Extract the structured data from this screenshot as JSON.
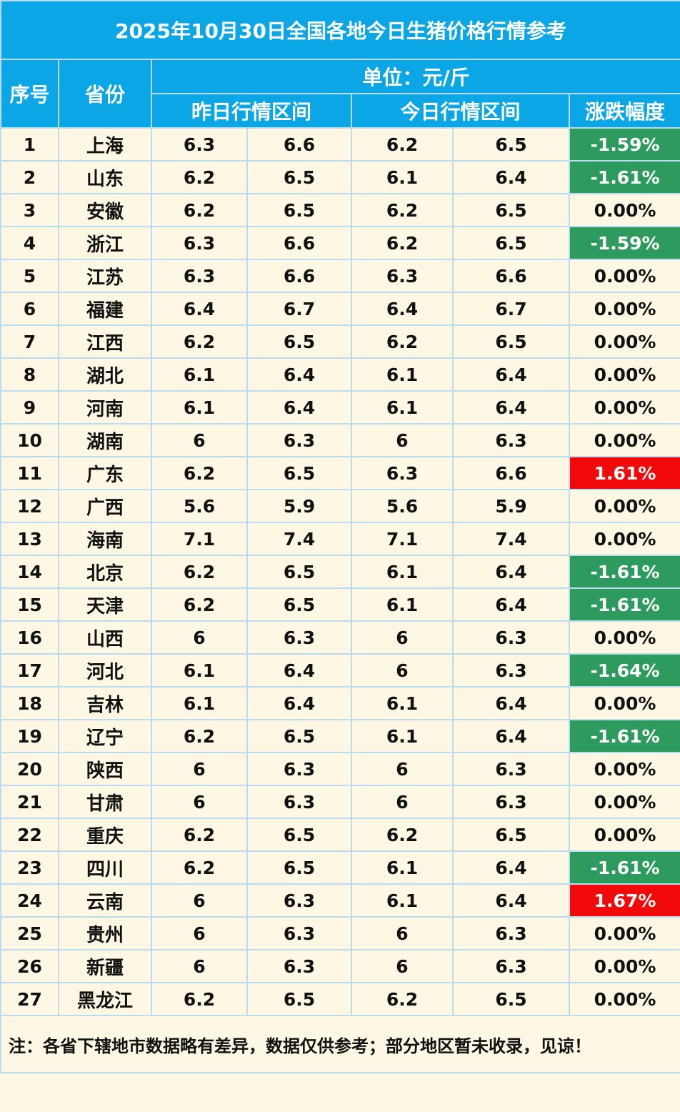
{
  "title": "2025年10月30日全国各地今日生猪价格行情参考",
  "headers": {
    "index": "序号",
    "province": "省份",
    "unit": "单位：元/斤",
    "yesterday": "昨日行情区间",
    "today": "今日行情区间",
    "change": "涨跌幅度"
  },
  "rows": [
    {
      "no": "1",
      "province": "上海",
      "y_low": "6.3",
      "y_high": "6.6",
      "t_low": "6.2",
      "t_high": "6.5",
      "change": "-1.59%",
      "trend": "down"
    },
    {
      "no": "2",
      "province": "山东",
      "y_low": "6.2",
      "y_high": "6.5",
      "t_low": "6.1",
      "t_high": "6.4",
      "change": "-1.61%",
      "trend": "down"
    },
    {
      "no": "3",
      "province": "安徽",
      "y_low": "6.2",
      "y_high": "6.5",
      "t_low": "6.2",
      "t_high": "6.5",
      "change": "0.00%",
      "trend": "flat"
    },
    {
      "no": "4",
      "province": "浙江",
      "y_low": "6.3",
      "y_high": "6.6",
      "t_low": "6.2",
      "t_high": "6.5",
      "change": "-1.59%",
      "trend": "down"
    },
    {
      "no": "5",
      "province": "江苏",
      "y_low": "6.3",
      "y_high": "6.6",
      "t_low": "6.3",
      "t_high": "6.6",
      "change": "0.00%",
      "trend": "flat"
    },
    {
      "no": "6",
      "province": "福建",
      "y_low": "6.4",
      "y_high": "6.7",
      "t_low": "6.4",
      "t_high": "6.7",
      "change": "0.00%",
      "trend": "flat"
    },
    {
      "no": "7",
      "province": "江西",
      "y_low": "6.2",
      "y_high": "6.5",
      "t_low": "6.2",
      "t_high": "6.5",
      "change": "0.00%",
      "trend": "flat"
    },
    {
      "no": "8",
      "province": "湖北",
      "y_low": "6.1",
      "y_high": "6.4",
      "t_low": "6.1",
      "t_high": "6.4",
      "change": "0.00%",
      "trend": "flat"
    },
    {
      "no": "9",
      "province": "河南",
      "y_low": "6.1",
      "y_high": "6.4",
      "t_low": "6.1",
      "t_high": "6.4",
      "change": "0.00%",
      "trend": "flat"
    },
    {
      "no": "10",
      "province": "湖南",
      "y_low": "6",
      "y_high": "6.3",
      "t_low": "6",
      "t_high": "6.3",
      "change": "0.00%",
      "trend": "flat"
    },
    {
      "no": "11",
      "province": "广东",
      "y_low": "6.2",
      "y_high": "6.5",
      "t_low": "6.3",
      "t_high": "6.6",
      "change": "1.61%",
      "trend": "up"
    },
    {
      "no": "12",
      "province": "广西",
      "y_low": "5.6",
      "y_high": "5.9",
      "t_low": "5.6",
      "t_high": "5.9",
      "change": "0.00%",
      "trend": "flat"
    },
    {
      "no": "13",
      "province": "海南",
      "y_low": "7.1",
      "y_high": "7.4",
      "t_low": "7.1",
      "t_high": "7.4",
      "change": "0.00%",
      "trend": "flat"
    },
    {
      "no": "14",
      "province": "北京",
      "y_low": "6.2",
      "y_high": "6.5",
      "t_low": "6.1",
      "t_high": "6.4",
      "change": "-1.61%",
      "trend": "down"
    },
    {
      "no": "15",
      "province": "天津",
      "y_low": "6.2",
      "y_high": "6.5",
      "t_low": "6.1",
      "t_high": "6.4",
      "change": "-1.61%",
      "trend": "down"
    },
    {
      "no": "16",
      "province": "山西",
      "y_low": "6",
      "y_high": "6.3",
      "t_low": "6",
      "t_high": "6.3",
      "change": "0.00%",
      "trend": "flat"
    },
    {
      "no": "17",
      "province": "河北",
      "y_low": "6.1",
      "y_high": "6.4",
      "t_low": "6",
      "t_high": "6.3",
      "change": "-1.64%",
      "trend": "down"
    },
    {
      "no": "18",
      "province": "吉林",
      "y_low": "6.1",
      "y_high": "6.4",
      "t_low": "6.1",
      "t_high": "6.4",
      "change": "0.00%",
      "trend": "flat"
    },
    {
      "no": "19",
      "province": "辽宁",
      "y_low": "6.2",
      "y_high": "6.5",
      "t_low": "6.1",
      "t_high": "6.4",
      "change": "-1.61%",
      "trend": "down"
    },
    {
      "no": "20",
      "province": "陕西",
      "y_low": "6",
      "y_high": "6.3",
      "t_low": "6",
      "t_high": "6.3",
      "change": "0.00%",
      "trend": "flat"
    },
    {
      "no": "21",
      "province": "甘肃",
      "y_low": "6",
      "y_high": "6.3",
      "t_low": "6",
      "t_high": "6.3",
      "change": "0.00%",
      "trend": "flat"
    },
    {
      "no": "22",
      "province": "重庆",
      "y_low": "6.2",
      "y_high": "6.5",
      "t_low": "6.2",
      "t_high": "6.5",
      "change": "0.00%",
      "trend": "flat"
    },
    {
      "no": "23",
      "province": "四川",
      "y_low": "6.2",
      "y_high": "6.5",
      "t_low": "6.1",
      "t_high": "6.4",
      "change": "-1.61%",
      "trend": "down"
    },
    {
      "no": "24",
      "province": "云南",
      "y_low": "6",
      "y_high": "6.3",
      "t_low": "6.1",
      "t_high": "6.4",
      "change": "1.67%",
      "trend": "up"
    },
    {
      "no": "25",
      "province": "贵州",
      "y_low": "6",
      "y_high": "6.3",
      "t_low": "6",
      "t_high": "6.3",
      "change": "0.00%",
      "trend": "flat"
    },
    {
      "no": "26",
      "province": "新疆",
      "y_low": "6",
      "y_high": "6.3",
      "t_low": "6",
      "t_high": "6.3",
      "change": "0.00%",
      "trend": "flat"
    },
    {
      "no": "27",
      "province": "黑龙江",
      "y_low": "6.2",
      "y_high": "6.5",
      "t_low": "6.2",
      "t_high": "6.5",
      "change": "0.00%",
      "trend": "flat"
    }
  ],
  "note": "注：各省下辖地市数据略有差异，数据仅供参考；部分地区暂未收录，见谅！",
  "colors": {
    "header_bg": "#0aa6e6",
    "row_bg": "#fdf7e4",
    "down_bg": "#2e9b5e",
    "up_bg": "#f20a0a",
    "border": "#b9dcef"
  }
}
